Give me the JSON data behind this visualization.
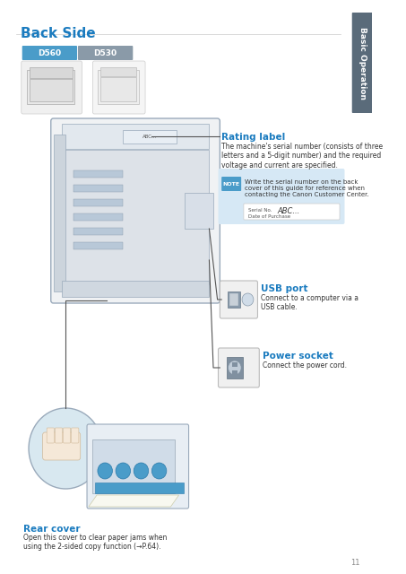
{
  "title": "Back Side",
  "title_color": "#1a7bbf",
  "sidebar_text": "Basic Operation",
  "sidebar_bg": "#5a6b7a",
  "sidebar_text_color": "#ffffff",
  "page_number": "11",
  "tab_d560_color": "#4a9cc9",
  "tab_d530_color": "#8a9aa8",
  "tab_d560_label": "D560",
  "tab_d530_label": "D530",
  "rating_label_title": "Rating label",
  "rating_label_body": "The machine's serial number (consists of three\nletters and a 5-digit number) and the required\nvoltage and current are specified.",
  "note_text": "Write the serial number on the back\ncover of this guide for reference when\ncontacting the Canon Customer Center.",
  "note_bg": "#d6e8f5",
  "note_icon_bg": "#4a9cc9",
  "note_icon_text": "NOTE",
  "serial_label": "Serial No.",
  "serial_value": "ABC...",
  "date_label": "Date of Purchase",
  "usb_port_title": "USB port",
  "usb_port_body": "Connect to a computer via a\nUSB cable.",
  "power_socket_title": "Power socket",
  "power_socket_body": "Connect the power cord.",
  "rear_cover_title": "Rear cover",
  "rear_cover_body": "Open this cover to clear paper jams when\nusing the 2-sided copy function (→P.64).",
  "accent_color": "#1a7bbf",
  "bg_color": "#ffffff",
  "gray_line": "#a0a8b0"
}
